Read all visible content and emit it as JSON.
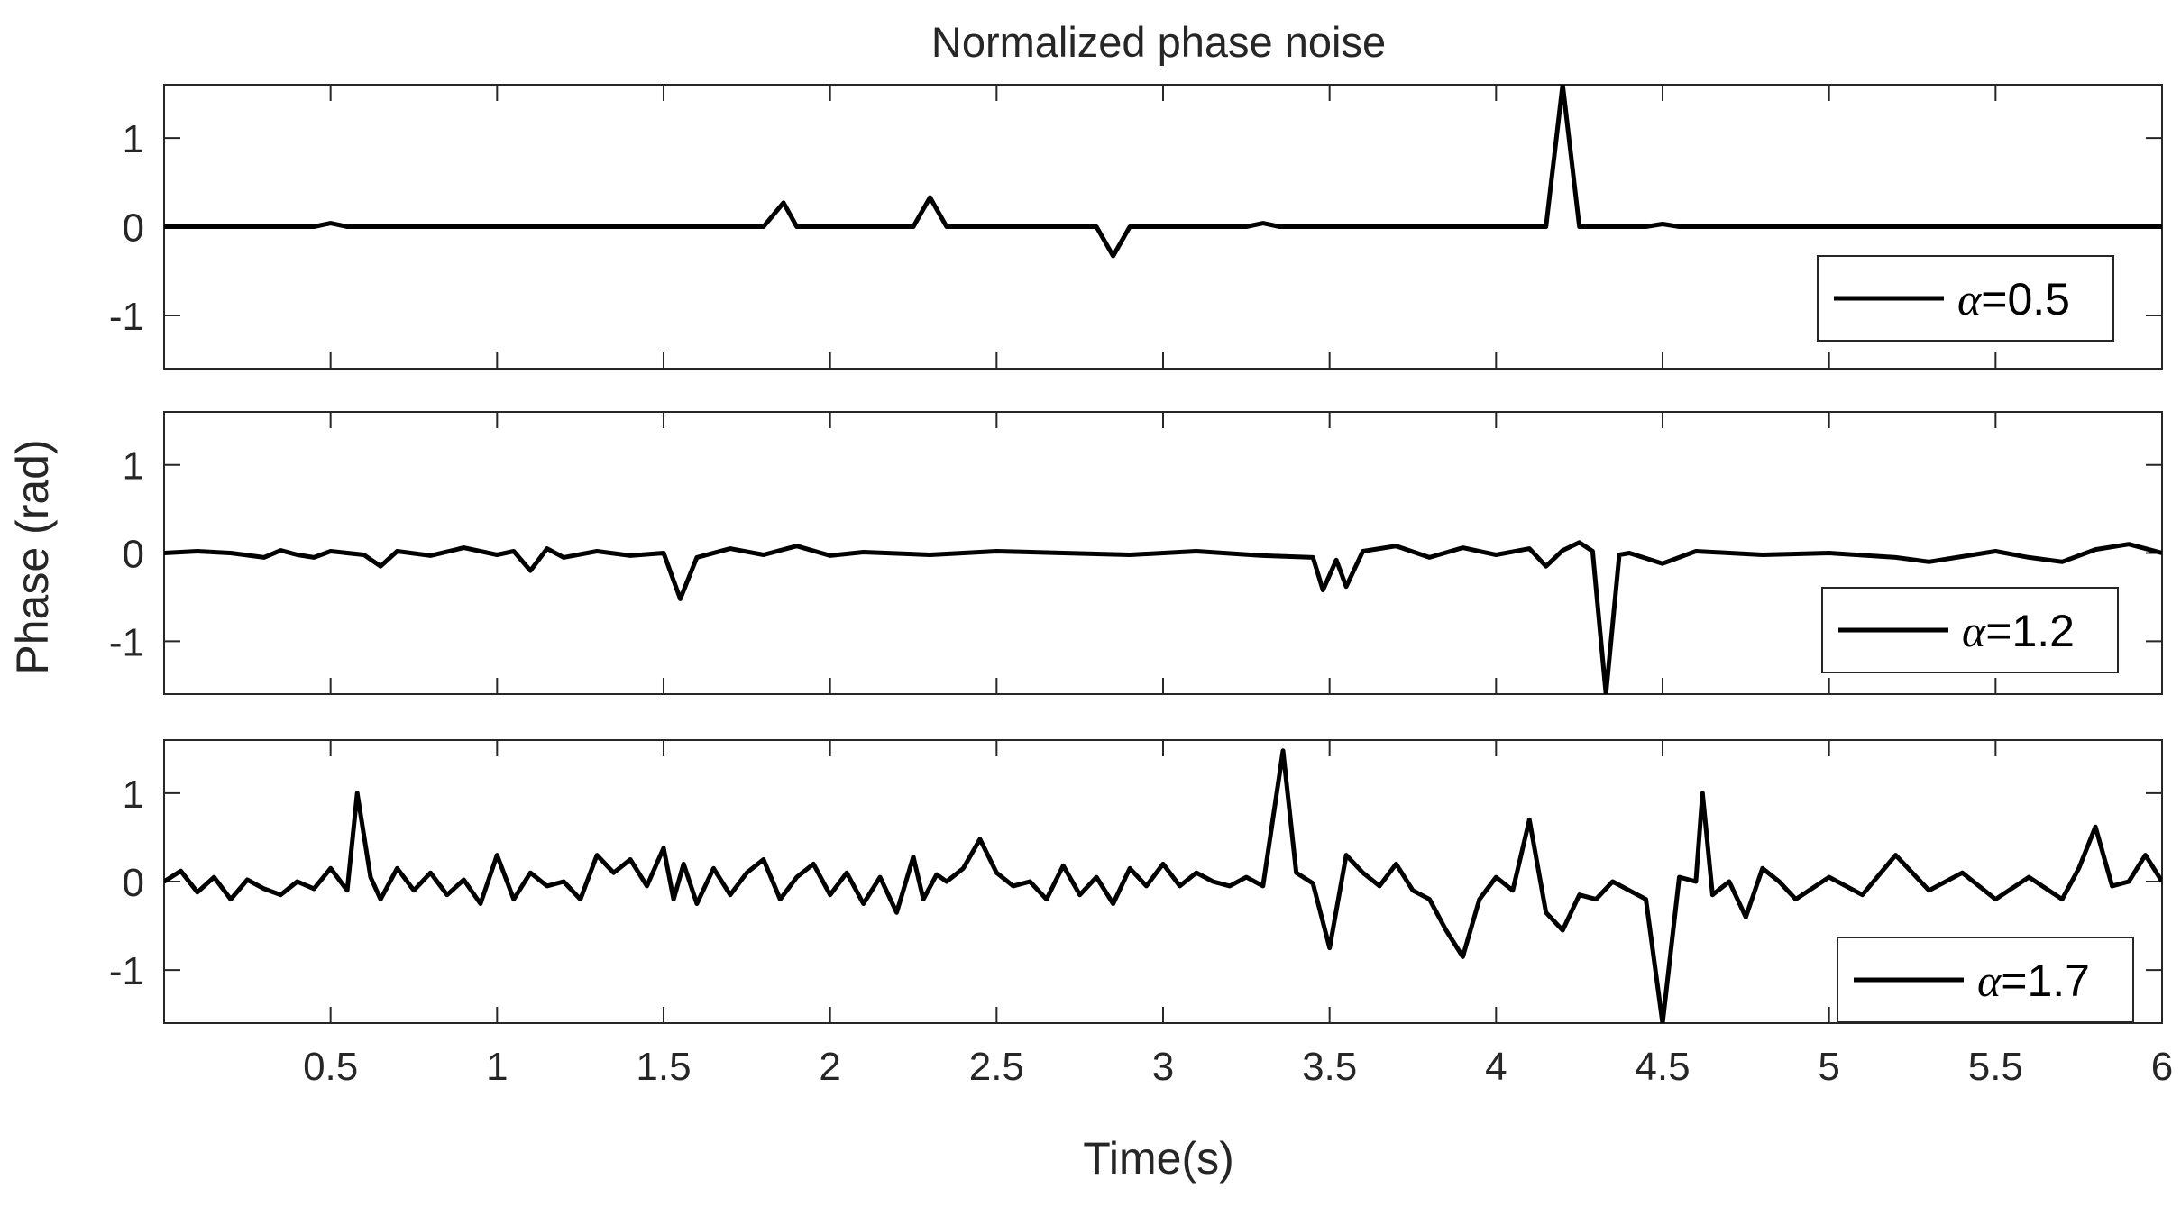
{
  "chart_data": {
    "type": "line",
    "title": "Normalized phase noise",
    "xlabel": "Time(s)",
    "ylabel": "Phase (rad)",
    "xlim": [
      0,
      6
    ],
    "x_ticks": [
      "0.5",
      "1",
      "1.5",
      "2",
      "2.5",
      "3",
      "3.5",
      "4",
      "4.5",
      "5",
      "5.5",
      "6"
    ],
    "x_tick_values": [
      0.5,
      1,
      1.5,
      2,
      2.5,
      3,
      3.5,
      4,
      4.5,
      5,
      5.5,
      6
    ],
    "y_ticks": [
      "1",
      "0",
      "-1"
    ],
    "y_tick_values": [
      1,
      0,
      -1
    ],
    "ylim": [
      -1.6,
      1.6
    ],
    "grid": false,
    "legend_position": "bottom-right",
    "line_color": "#000000",
    "panels": [
      {
        "legend_symbol": "α",
        "legend_value": "=0.5",
        "x": [
          0,
          0.45,
          0.5,
          0.55,
          1.0,
          1.8,
          1.86,
          1.9,
          2.25,
          2.3,
          2.35,
          2.5,
          2.55,
          2.8,
          2.85,
          2.9,
          3.25,
          3.3,
          3.35,
          4.15,
          4.2,
          4.25,
          4.45,
          4.5,
          4.55,
          5.5,
          6.0
        ],
        "y": [
          0,
          0,
          0.04,
          0,
          0,
          0,
          0.27,
          0,
          0,
          0.33,
          0,
          0,
          0,
          0,
          -0.33,
          0,
          0,
          0.04,
          0,
          0,
          1.6,
          0,
          0,
          0.03,
          0,
          0,
          0
        ]
      },
      {
        "legend_symbol": "α",
        "legend_value": "=1.2",
        "x": [
          0,
          0.1,
          0.2,
          0.3,
          0.35,
          0.4,
          0.45,
          0.5,
          0.6,
          0.65,
          0.7,
          0.8,
          0.9,
          1.0,
          1.05,
          1.1,
          1.15,
          1.2,
          1.3,
          1.4,
          1.5,
          1.55,
          1.6,
          1.7,
          1.8,
          1.9,
          2.0,
          2.1,
          2.3,
          2.5,
          2.7,
          2.9,
          3.1,
          3.3,
          3.45,
          3.48,
          3.52,
          3.55,
          3.6,
          3.7,
          3.8,
          3.9,
          4.0,
          4.1,
          4.15,
          4.2,
          4.25,
          4.29,
          4.33,
          4.37,
          4.4,
          4.5,
          4.6,
          4.8,
          5.0,
          5.2,
          5.3,
          5.5,
          5.6,
          5.7,
          5.8,
          5.9,
          6.0
        ],
        "y": [
          0,
          0.02,
          0,
          -0.05,
          0.03,
          -0.02,
          -0.05,
          0.02,
          -0.02,
          -0.15,
          0.02,
          -0.03,
          0.06,
          -0.02,
          0.02,
          -0.2,
          0.05,
          -0.05,
          0.02,
          -0.03,
          0,
          -0.52,
          -0.05,
          0.05,
          -0.02,
          0.08,
          -0.03,
          0.01,
          -0.02,
          0.02,
          0.0,
          -0.02,
          0.02,
          -0.03,
          -0.05,
          -0.42,
          -0.08,
          -0.38,
          0.02,
          0.08,
          -0.05,
          0.06,
          -0.02,
          0.05,
          -0.15,
          0.03,
          0.12,
          0.02,
          -1.6,
          -0.02,
          0.0,
          -0.12,
          0.02,
          -0.02,
          0.0,
          -0.05,
          -0.1,
          0.02,
          -0.05,
          -0.1,
          0.04,
          0.1,
          0.0
        ]
      },
      {
        "legend_symbol": "α",
        "legend_value": "=1.7",
        "x": [
          0,
          0.05,
          0.1,
          0.15,
          0.2,
          0.25,
          0.3,
          0.35,
          0.4,
          0.45,
          0.5,
          0.55,
          0.58,
          0.62,
          0.65,
          0.7,
          0.75,
          0.8,
          0.85,
          0.9,
          0.95,
          1.0,
          1.05,
          1.1,
          1.15,
          1.2,
          1.25,
          1.3,
          1.35,
          1.4,
          1.45,
          1.5,
          1.53,
          1.56,
          1.6,
          1.65,
          1.7,
          1.75,
          1.8,
          1.85,
          1.9,
          1.95,
          2.0,
          2.05,
          2.1,
          2.15,
          2.2,
          2.25,
          2.28,
          2.32,
          2.35,
          2.4,
          2.45,
          2.5,
          2.55,
          2.6,
          2.65,
          2.7,
          2.75,
          2.8,
          2.85,
          2.9,
          2.95,
          3.0,
          3.05,
          3.1,
          3.15,
          3.2,
          3.25,
          3.3,
          3.36,
          3.4,
          3.45,
          3.5,
          3.55,
          3.6,
          3.65,
          3.7,
          3.75,
          3.8,
          3.85,
          3.9,
          3.95,
          4.0,
          4.05,
          4.1,
          4.15,
          4.2,
          4.25,
          4.3,
          4.35,
          4.4,
          4.45,
          4.5,
          4.55,
          4.6,
          4.62,
          4.65,
          4.7,
          4.75,
          4.8,
          4.85,
          4.9,
          5.0,
          5.1,
          5.2,
          5.3,
          5.4,
          5.5,
          5.6,
          5.7,
          5.75,
          5.8,
          5.85,
          5.9,
          5.95,
          6.0
        ],
        "y": [
          0.0,
          0.12,
          -0.12,
          0.05,
          -0.2,
          0.02,
          -0.08,
          -0.15,
          0.0,
          -0.08,
          0.15,
          -0.1,
          1.0,
          0.05,
          -0.2,
          0.15,
          -0.1,
          0.1,
          -0.15,
          0.02,
          -0.25,
          0.3,
          -0.2,
          0.1,
          -0.05,
          0.0,
          -0.2,
          0.3,
          0.1,
          0.25,
          -0.05,
          0.38,
          -0.2,
          0.2,
          -0.25,
          0.15,
          -0.15,
          0.1,
          0.25,
          -0.2,
          0.05,
          0.2,
          -0.15,
          0.1,
          -0.25,
          0.05,
          -0.35,
          0.28,
          -0.2,
          0.08,
          0.0,
          0.15,
          0.48,
          0.1,
          -0.05,
          0.0,
          -0.2,
          0.18,
          -0.15,
          0.05,
          -0.25,
          0.15,
          -0.05,
          0.2,
          -0.05,
          0.1,
          0.0,
          -0.05,
          0.05,
          -0.05,
          1.48,
          0.1,
          -0.02,
          -0.75,
          0.3,
          0.1,
          -0.05,
          0.2,
          -0.1,
          -0.2,
          -0.55,
          -0.85,
          -0.2,
          0.05,
          -0.1,
          0.7,
          -0.35,
          -0.55,
          -0.15,
          -0.2,
          0.0,
          -0.1,
          -0.2,
          -1.6,
          0.05,
          0.0,
          1.0,
          -0.15,
          0.0,
          -0.4,
          0.15,
          0.0,
          -0.2,
          0.05,
          -0.15,
          0.3,
          -0.1,
          0.1,
          -0.2,
          0.05,
          -0.2,
          0.15,
          0.62,
          -0.05,
          0.0,
          0.3,
          0.0
        ]
      }
    ]
  }
}
